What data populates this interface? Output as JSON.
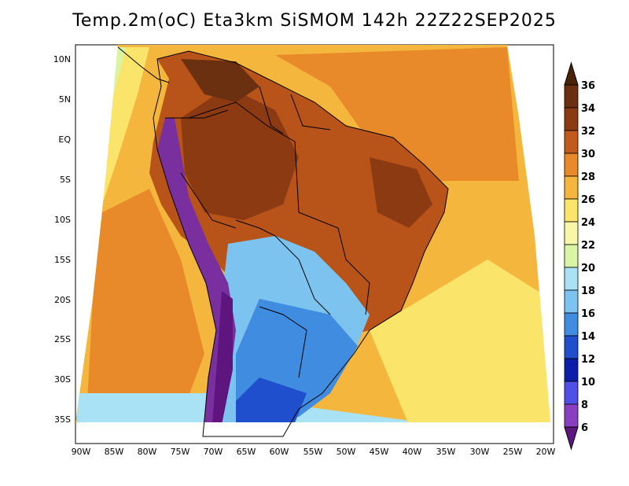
{
  "title": "Temp.2m(oC) Eta3km SiSMOM 142h 22Z22SEP2025",
  "axes": {
    "lat_labels": [
      "10N",
      "5N",
      "EQ",
      "5S",
      "10S",
      "15S",
      "20S",
      "25S",
      "30S",
      "35S"
    ],
    "lon_labels": [
      "90W",
      "85W",
      "80W",
      "75W",
      "70W",
      "65W",
      "60W",
      "55W",
      "50W",
      "45W",
      "40W",
      "35W",
      "30W",
      "25W",
      "20W"
    ]
  },
  "colorbar": {
    "levels": [
      "36",
      "34",
      "32",
      "30",
      "28",
      "26",
      "24",
      "22",
      "20",
      "18",
      "16",
      "14",
      "12",
      "10",
      "8",
      "6"
    ],
    "colors": [
      "#4a2208",
      "#6b300f",
      "#8b3a12",
      "#c15a1c",
      "#e98a2a",
      "#f4b63c",
      "#fbe46a",
      "#f8f7a8",
      "#d9f5a3",
      "#a9e2f4",
      "#7cc3f0",
      "#3f8ce0",
      "#1f4fcc",
      "#0a1ea8",
      "#5050e8",
      "#8a3fc0",
      "#5e157e"
    ]
  },
  "colors": {
    "ocean": "#f4b63c",
    "continent_hot": "#b8541a",
    "continent_south": "#4a86de",
    "andes": "#7a2f9e"
  }
}
